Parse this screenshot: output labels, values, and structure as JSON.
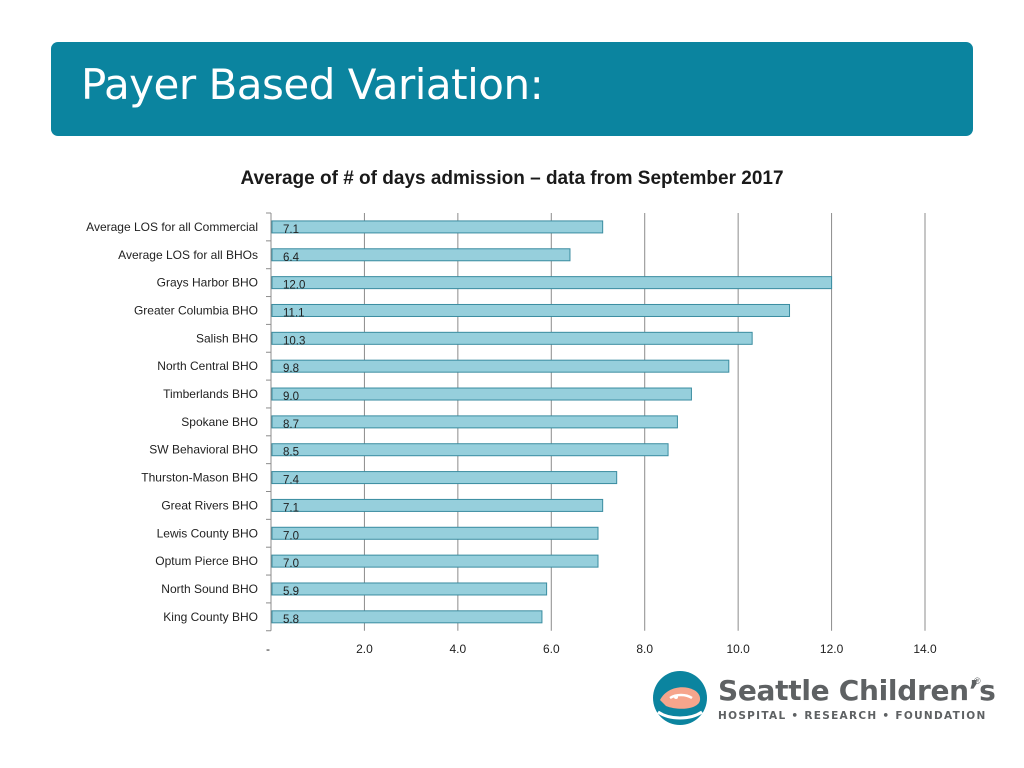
{
  "slide": {
    "title": "Payer Based Variation:"
  },
  "colors": {
    "title_bar": "#0b849f",
    "bar_fill": "#96cfdc",
    "bar_stroke": "#3a8ca0",
    "gridline": "#8c8c8c"
  },
  "chart_data": {
    "type": "bar",
    "orientation": "horizontal",
    "title": "Average of # of days admission – data from September 2017",
    "categories": [
      "Average LOS for all Commercial",
      "Average LOS for all BHOs",
      "Grays Harbor BHO",
      "Greater Columbia BHO",
      "Salish BHO",
      "North Central BHO",
      "Timberlands BHO",
      "Spokane BHO",
      "SW Behavioral BHO",
      "Thurston-Mason BHO",
      "Great Rivers BHO",
      "Lewis County BHO",
      "Optum Pierce BHO",
      "North Sound BHO",
      "King County BHO"
    ],
    "values": [
      7.1,
      6.4,
      12.0,
      11.1,
      10.3,
      9.8,
      9.0,
      8.7,
      8.5,
      7.4,
      7.1,
      7.0,
      7.0,
      5.9,
      5.8
    ],
    "value_labels": [
      "7.1",
      "6.4",
      "12.0",
      "11.1",
      "10.3",
      "9.8",
      "9.0",
      "8.7",
      "8.5",
      "7.4",
      "7.1",
      "7.0",
      "7.0",
      "5.9",
      "5.8"
    ],
    "xlim": [
      0,
      14
    ],
    "xticks": [
      0,
      2,
      4,
      6,
      8,
      10,
      12,
      14
    ],
    "xtick_labels": [
      "-",
      "2.0",
      "4.0",
      "6.0",
      "8.0",
      "10.0",
      "12.0",
      "14.0"
    ],
    "xlabel": "",
    "ylabel": "",
    "grid": "vertical gridlines",
    "legend": "none"
  },
  "logo": {
    "name": "Seattle Children’s",
    "registered": "®",
    "tagline": "HOSPITAL • RESEARCH • FOUNDATION"
  }
}
